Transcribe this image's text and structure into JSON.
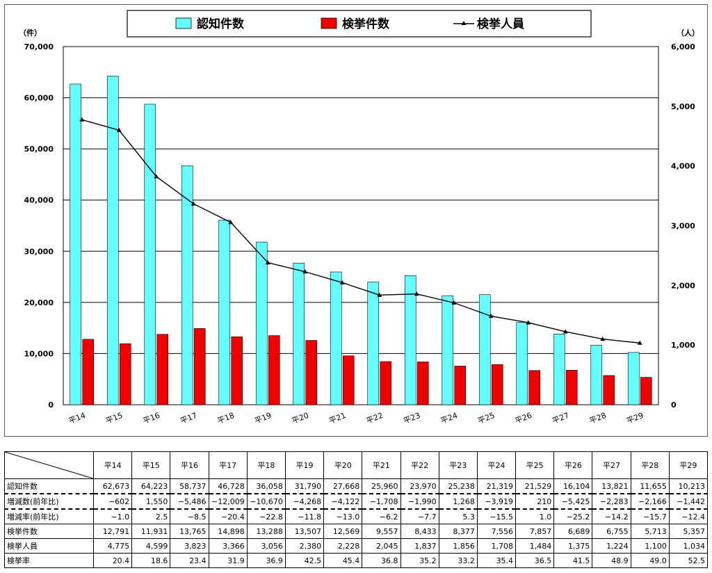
{
  "chart_data": {
    "type": "bar",
    "categories": [
      "平14",
      "平15",
      "平16",
      "平17",
      "平18",
      "平19",
      "平20",
      "平21",
      "平22",
      "平23",
      "平24",
      "平25",
      "平26",
      "平27",
      "平28",
      "平29"
    ],
    "series": [
      {
        "name": "認知件数",
        "type": "bar",
        "axis": "left",
        "color": "#66FFFF",
        "values": [
          62673,
          64223,
          58737,
          46728,
          36058,
          31790,
          27668,
          25960,
          23970,
          25238,
          21319,
          21529,
          16104,
          13821,
          11655,
          10213
        ]
      },
      {
        "name": "検挙件数",
        "type": "bar",
        "axis": "left",
        "color": "#EE0000",
        "values": [
          12791,
          11931,
          13765,
          14898,
          13288,
          13507,
          12569,
          9557,
          8433,
          8377,
          7556,
          7857,
          6689,
          6755,
          5713,
          5357
        ]
      },
      {
        "name": "検挙人員",
        "type": "line",
        "axis": "right",
        "color": "#000000",
        "values": [
          4775,
          4599,
          3823,
          3366,
          3056,
          2380,
          2228,
          2045,
          1837,
          1856,
          1708,
          1484,
          1375,
          1224,
          1100,
          1034
        ]
      }
    ],
    "yleft": {
      "unit_label": "（件）",
      "min": 0,
      "max": 70000,
      "ticks": [
        "0",
        "10,000",
        "20,000",
        "30,000",
        "40,000",
        "50,000",
        "60,000",
        "70,000"
      ]
    },
    "yright": {
      "unit_label": "（人）",
      "min": 0,
      "max": 6000,
      "ticks": [
        "0",
        "1,000",
        "2,000",
        "3,000",
        "4,000",
        "5,000",
        "6,000"
      ]
    },
    "grid": true,
    "legend_position": "top-center"
  },
  "table": {
    "years": [
      "平14",
      "平15",
      "平16",
      "平17",
      "平18",
      "平19",
      "平20",
      "平21",
      "平22",
      "平23",
      "平24",
      "平25",
      "平26",
      "平27",
      "平28",
      "平29"
    ],
    "rows": [
      {
        "label": "認知件数",
        "values": [
          "62,673",
          "64,223",
          "58,737",
          "46,728",
          "36,058",
          "31,790",
          "27,668",
          "25,960",
          "23,970",
          "25,238",
          "21,319",
          "21,529",
          "16,104",
          "13,821",
          "11,655",
          "10,213"
        ],
        "dashed": true
      },
      {
        "label": "増減数(前年比)",
        "values": [
          "−602",
          "1,550",
          "−5,486",
          "−12,009",
          "−10,670",
          "−4,268",
          "−4,122",
          "−1,708",
          "−1,990",
          "1,268",
          "−3,919",
          "210",
          "−5,425",
          "−2,283",
          "−2,166",
          "−1,442"
        ],
        "dashed": true
      },
      {
        "label": "増減率(前年比)",
        "values": [
          "−1.0",
          "2.5",
          "−8.5",
          "−20.4",
          "−22.8",
          "−11.8",
          "−13.0",
          "−6.2",
          "−7.7",
          "5.3",
          "−15.5",
          "1.0",
          "−25.2",
          "−14.2",
          "−15.7",
          "−12.4"
        ],
        "dashed": false
      },
      {
        "label": "検挙件数",
        "values": [
          "12,791",
          "11,931",
          "13,765",
          "14,898",
          "13,288",
          "13,507",
          "12,569",
          "9,557",
          "8,433",
          "8,377",
          "7,556",
          "7,857",
          "6,689",
          "6,755",
          "5,713",
          "5,357"
        ],
        "dashed": false
      },
      {
        "label": "検挙人員",
        "values": [
          "4,775",
          "4,599",
          "3,823",
          "3,366",
          "3,056",
          "2,380",
          "2,228",
          "2,045",
          "1,837",
          "1,856",
          "1,708",
          "1,484",
          "1,375",
          "1,224",
          "1,100",
          "1,034"
        ],
        "dashed": false
      },
      {
        "label": "検挙率",
        "values": [
          "20.4",
          "18.6",
          "23.4",
          "31.9",
          "36.9",
          "42.5",
          "45.4",
          "36.8",
          "35.2",
          "33.2",
          "35.4",
          "36.5",
          "41.5",
          "48.9",
          "49.0",
          "52.5"
        ],
        "dashed": false
      }
    ]
  }
}
